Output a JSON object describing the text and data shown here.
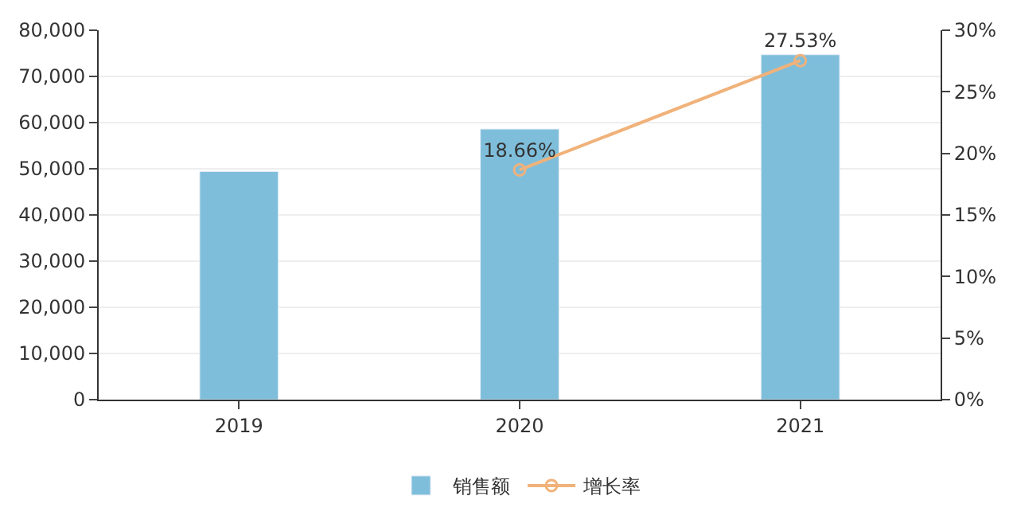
{
  "chart_data": {
    "type": "bar",
    "categories": [
      "2019",
      "2020",
      "2021"
    ],
    "series": [
      {
        "name": "销售额",
        "color": "#7fbedb",
        "values": [
          49400,
          58600,
          74700
        ]
      },
      {
        "name": "增长率",
        "type": "line",
        "axis": "y2",
        "color": "#f0b27a",
        "marker": "circle",
        "values": [
          null,
          18.66,
          27.53
        ],
        "value_labels": [
          null,
          "18.66%",
          "27.53%"
        ]
      }
    ],
    "ylim": [
      0,
      80000
    ],
    "yticks": [
      0,
      {
        "value": 10000,
        "label": "10,000"
      },
      {
        "value": 20000,
        "label": "20,000"
      },
      {
        "value": 30000,
        "label": "30,000"
      },
      {
        "value": 40000,
        "label": "40,000"
      },
      {
        "value": 50000,
        "label": "50,000"
      },
      {
        "value": 60000,
        "label": "60,000"
      },
      {
        "value": 70000,
        "label": "70,000"
      },
      {
        "value": 80000,
        "label": "80,000"
      }
    ],
    "y2lim": [
      0,
      30
    ],
    "y2ticks": [
      {
        "value": 0,
        "label": "0%"
      },
      {
        "value": 5,
        "label": "5%"
      },
      {
        "value": 10,
        "label": "10%"
      },
      {
        "value": 15,
        "label": "15%"
      },
      {
        "value": 20,
        "label": "20%"
      },
      {
        "value": 25,
        "label": "25%"
      },
      {
        "value": 30,
        "label": "30%"
      }
    ],
    "grid": "y",
    "legend": "bottom"
  }
}
